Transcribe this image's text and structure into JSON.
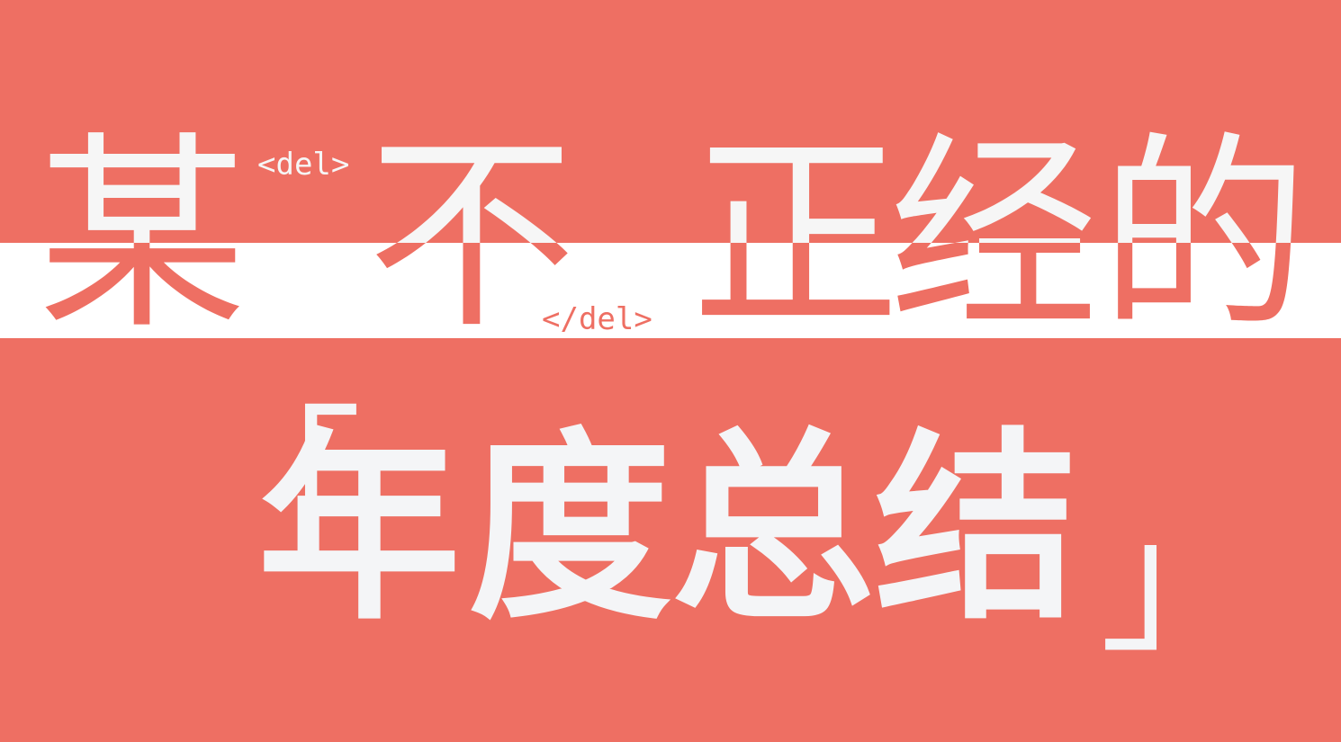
{
  "title": {
    "chars": [
      "某",
      "不",
      "正",
      "经",
      "的"
    ]
  },
  "tags": {
    "open": "<del>",
    "close": "</del>"
  },
  "subtitle": {
    "bracket_open": "「",
    "chars": [
      "年",
      "度",
      "总",
      "结"
    ],
    "bracket_close": "」"
  },
  "colors": {
    "background": "#ee6f63",
    "band": "#ffffff",
    "text": "#f4f5f7"
  }
}
